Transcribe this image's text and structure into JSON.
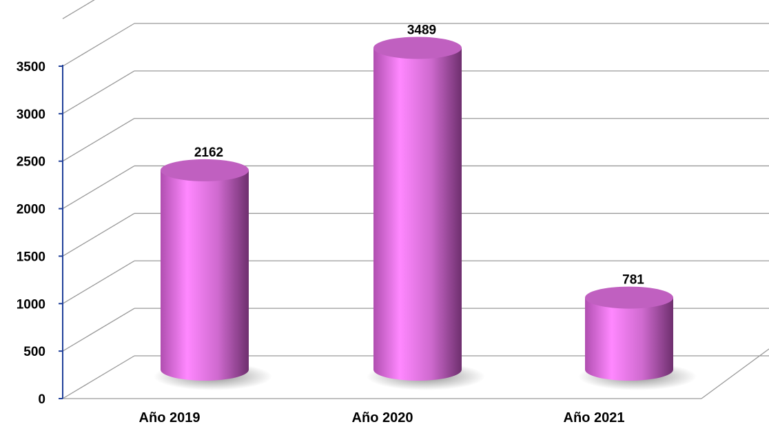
{
  "chart_data": {
    "type": "bar",
    "style": "3d-cylinder",
    "categories": [
      "Año 2019",
      "Año 2020",
      "Año 2021"
    ],
    "values": [
      2162,
      3489,
      781
    ],
    "data_labels": [
      "2162",
      "3489",
      "781"
    ],
    "y_ticks": [
      "0",
      "500",
      "1000",
      "1500",
      "2000",
      "2500",
      "3000",
      "3500"
    ],
    "ylim": [
      0,
      3500
    ],
    "grid": true,
    "legend": "none",
    "colors": {
      "bar_front": "#ff88ff",
      "bar_mid": "#cc66cc",
      "bar_dark": "#6e2f6e",
      "bar_top": "#c060c0",
      "axis": "#1f3f99",
      "grid": "#999999"
    }
  }
}
